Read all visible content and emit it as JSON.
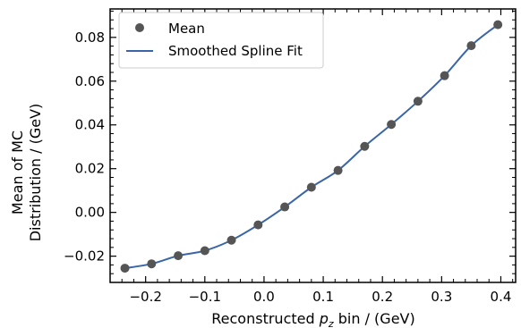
{
  "chart_data": {
    "type": "scatter",
    "xlabel_prefix": "Reconstructed ",
    "xlabel_var": "p",
    "xlabel_sub": "z",
    "xlabel_suffix": " bin / (GeV)",
    "ylabel_line1": "Mean of MC",
    "ylabel_line2": "Distribution / (GeV)",
    "xlim": [
      -0.26,
      0.425
    ],
    "ylim": [
      -0.032,
      0.093
    ],
    "xticks": [
      -0.2,
      -0.1,
      0.0,
      0.1,
      0.2,
      0.3,
      0.4
    ],
    "xtick_labels": [
      "−0.2",
      "−0.1",
      "0.0",
      "0.1",
      "0.2",
      "0.3",
      "0.4"
    ],
    "yticks": [
      -0.02,
      0.0,
      0.02,
      0.04,
      0.06,
      0.08
    ],
    "ytick_labels": [
      "−0.02",
      "0.00",
      "0.02",
      "0.04",
      "0.06",
      "0.08"
    ],
    "legend_position": "top-left",
    "series": [
      {
        "name": "Mean",
        "kind": "points",
        "color": "#555555",
        "x": [
          -0.235,
          -0.19,
          -0.145,
          -0.1,
          -0.055,
          -0.01,
          0.035,
          0.08,
          0.125,
          0.17,
          0.215,
          0.26,
          0.305,
          0.35,
          0.395
        ],
        "y": [
          -0.0255,
          -0.0235,
          -0.0198,
          -0.0175,
          -0.0127,
          -0.0057,
          0.0025,
          0.0115,
          0.0192,
          0.0302,
          0.0402,
          0.0508,
          0.0625,
          0.0762,
          0.0858
        ]
      },
      {
        "name": "Smoothed Spline Fit",
        "kind": "line",
        "color": "#3a66a7"
      }
    ]
  }
}
